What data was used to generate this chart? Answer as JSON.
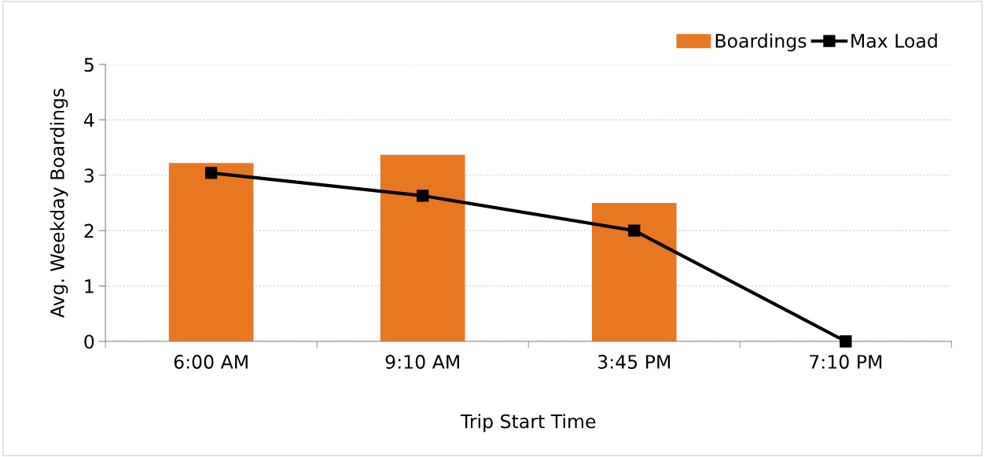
{
  "chart_data": {
    "type": "bar",
    "xlabel": "Trip Start Time",
    "ylabel": "Avg. Weekday Boardings",
    "categories": [
      "6:00 AM",
      "9:10 AM",
      "3:45 PM",
      "7:10 PM"
    ],
    "series": [
      {
        "name": "Boardings",
        "color": "#e87722",
        "values": [
          3.22,
          3.37,
          2.5,
          null
        ]
      },
      {
        "name": "Max Load",
        "type": "line",
        "color": "#000000",
        "values": [
          3.04,
          2.63,
          2.0,
          0
        ]
      }
    ],
    "ylim": [
      0,
      5
    ],
    "yticks": [
      0,
      1,
      2,
      3,
      4,
      5
    ],
    "grid": "y",
    "legend": "top right",
    "marker": "square",
    "line_style": "solid"
  }
}
